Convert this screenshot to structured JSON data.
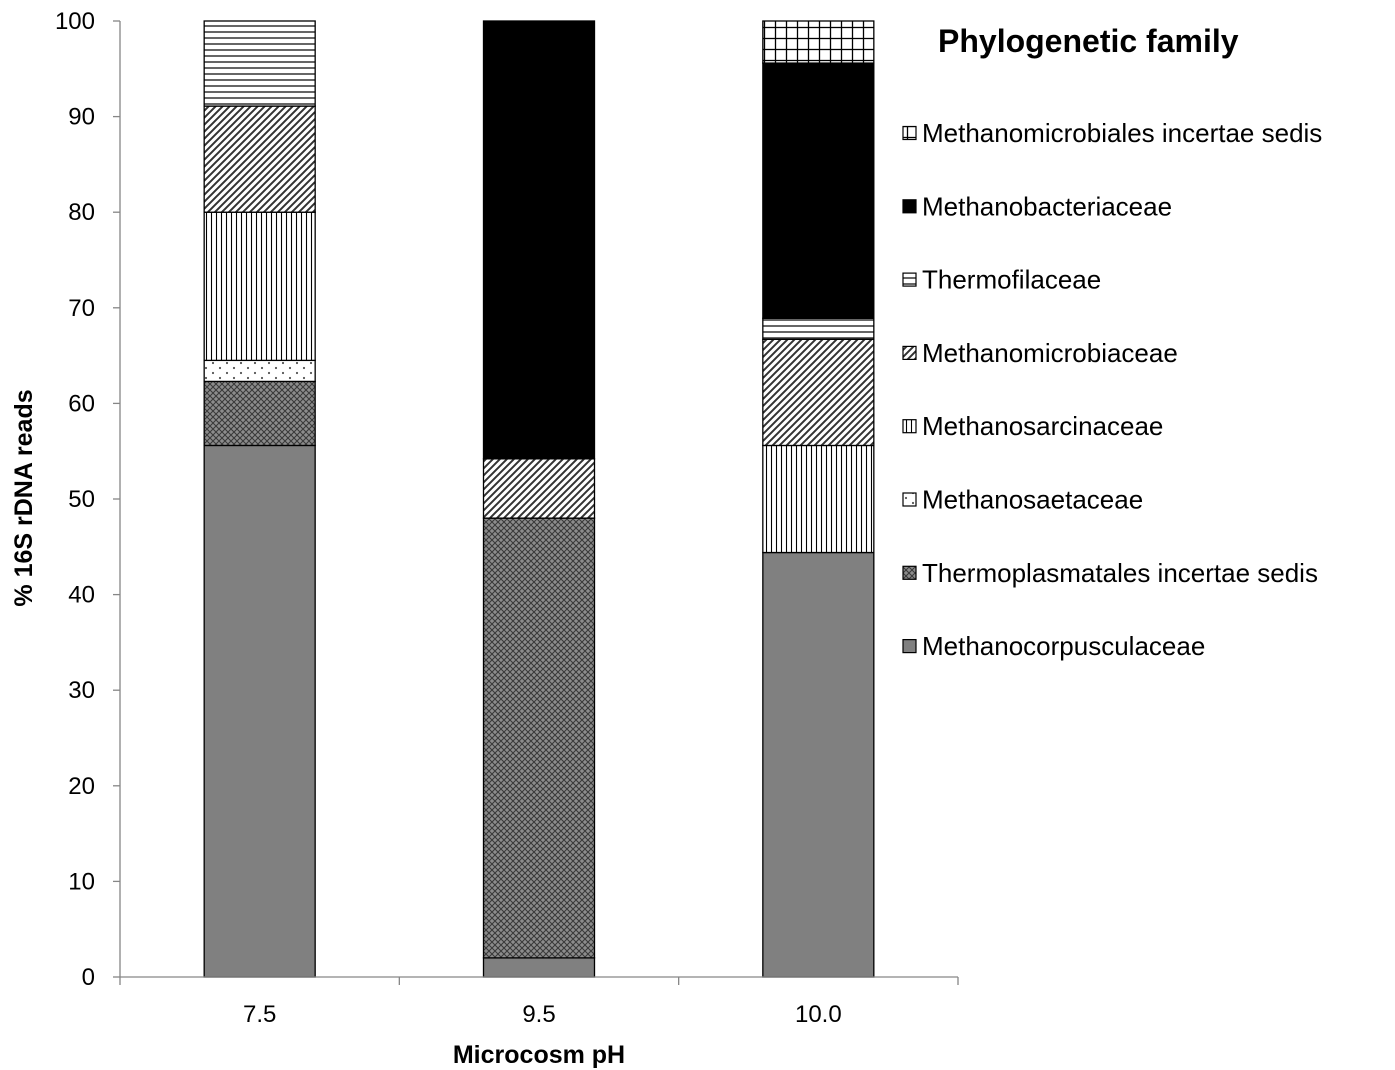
{
  "chart_data": {
    "type": "bar",
    "stacked": true,
    "categories": [
      "7.5",
      "9.5",
      "10.0"
    ],
    "xlabel": "Microcosm pH",
    "ylabel": "% 16S rDNA reads",
    "ylim": [
      0,
      100
    ],
    "yticks": [
      "0",
      "10",
      "20",
      "30",
      "40",
      "50",
      "60",
      "70",
      "80",
      "90",
      "100"
    ],
    "legend_title": "Phylogenetic family",
    "legend_position": "right",
    "grid": false,
    "series": [
      {
        "name": "Methanocorpusculaceae",
        "values": [
          55.6,
          2.0,
          44.4
        ],
        "pattern": "solid-gray",
        "color": "#808080"
      },
      {
        "name": "Thermoplasmatales incertae sedis",
        "values": [
          6.7,
          46.0,
          0
        ],
        "pattern": "crosshatch",
        "color": "#808080"
      },
      {
        "name": "Methanosaetaceae",
        "values": [
          2.2,
          0,
          0
        ],
        "pattern": "dots",
        "color": "#ffffff"
      },
      {
        "name": "Methanosarcinaceae",
        "values": [
          15.5,
          0,
          11.2
        ],
        "pattern": "vertical-lines",
        "color": "#ffffff"
      },
      {
        "name": "Methanomicrobiaceae",
        "values": [
          11.1,
          6.2,
          11.1
        ],
        "pattern": "diagonal-lines",
        "color": "#ffffff"
      },
      {
        "name": "Thermofilaceae",
        "values": [
          8.9,
          0,
          2.2
        ],
        "pattern": "horizontal-lines",
        "color": "#ffffff"
      },
      {
        "name": "Methanobacteriaceae",
        "values": [
          0,
          45.8,
          26.7
        ],
        "pattern": "solid-black",
        "color": "#000000"
      },
      {
        "name": "Methanomicrobiales incertae sedis",
        "values": [
          0,
          0,
          4.4
        ],
        "pattern": "grid",
        "color": "#ffffff"
      }
    ],
    "legend_order": [
      "Methanomicrobiales incertae sedis",
      "Methanobacteriaceae",
      "Thermofilaceae",
      "Methanomicrobiaceae",
      "Methanosarcinaceae",
      "Methanosaetaceae",
      "Thermoplasmatales incertae sedis",
      "Methanocorpusculaceae"
    ],
    "legend_label_prefix": {
      "Methanomicrobiales incertae sedis": " ",
      "Thermofilaceae": " "
    }
  }
}
